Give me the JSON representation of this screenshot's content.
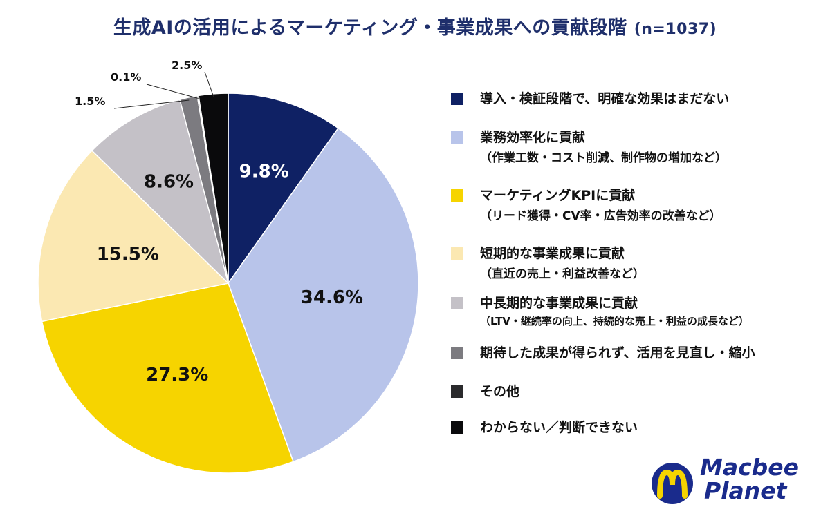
{
  "title": "生成AIの活用によるマーケティング・事業成果への貢献段階",
  "sample_size": "(n=1037)",
  "chart_data": {
    "type": "pie",
    "title": "生成AIの活用によるマーケティング・事業成果への貢献段階",
    "slices": [
      {
        "label": "導入・検証段階で、明確な効果はまだない",
        "sub": "",
        "value": 9.8,
        "display": "9.8%",
        "color": "#0f2164",
        "text_color": "#ffffff"
      },
      {
        "label": "業務効率化に貢献",
        "sub": "（作業工数・コスト削減、制作物の増加など）",
        "value": 34.6,
        "display": "34.6%",
        "color": "#b8c4ea",
        "text_color": "#111111"
      },
      {
        "label": "マーケティングKPIに貢献",
        "sub": "（リード獲得・CV率・広告効率の改善など）",
        "value": 27.3,
        "display": "27.3%",
        "color": "#f6d400",
        "text_color": "#111111"
      },
      {
        "label": "短期的な事業成果に貢献",
        "sub": "（直近の売上・利益改善など）",
        "value": 15.5,
        "display": "15.5%",
        "color": "#fbe8b2",
        "text_color": "#111111"
      },
      {
        "label": "中長期的な事業成果に貢献",
        "sub": "（LTV・継続率の向上、持続的な売上・利益の成長など）",
        "value": 8.6,
        "display": "8.6%",
        "color": "#c4c1c7",
        "text_color": "#111111"
      },
      {
        "label": "期待した成果が得られず、活用を見直し・縮小",
        "sub": "",
        "value": 1.5,
        "display": "1.5%",
        "color": "#7c7b80",
        "text_color": "#111111"
      },
      {
        "label": "その他",
        "sub": "",
        "value": 0.1,
        "display": "0.1%",
        "color": "#2a2a2c",
        "text_color": "#111111"
      },
      {
        "label": "わからない／判断できない",
        "sub": "",
        "value": 2.5,
        "display": "2.5%",
        "color": "#0a0a0c",
        "text_color": "#111111"
      }
    ],
    "legend_position": "right"
  },
  "logo": {
    "line1": "Macbee",
    "line2": "Planet",
    "color": "#1a2b8c",
    "accent": "#f6d400"
  }
}
